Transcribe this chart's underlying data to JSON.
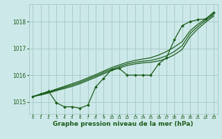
{
  "background_color": "#cce8e8",
  "grid_color": "#aacccc",
  "line_color": "#1a5c1a",
  "xlabel": "Graphe pression niveau de la mer (hPa)",
  "xlabel_fontsize": 6.5,
  "xticks": [
    0,
    1,
    2,
    3,
    4,
    5,
    6,
    7,
    8,
    9,
    10,
    11,
    12,
    13,
    14,
    15,
    16,
    17,
    18,
    19,
    20,
    21,
    22,
    23
  ],
  "yticks": [
    1015,
    1016,
    1017,
    1018
  ],
  "ylim": [
    1014.55,
    1018.65
  ],
  "xlim": [
    -0.5,
    23.5
  ],
  "series_smooth1": [
    1015.2,
    1015.28,
    1015.38,
    1015.48,
    1015.58,
    1015.68,
    1015.78,
    1015.9,
    1016.02,
    1016.15,
    1016.28,
    1016.38,
    1016.48,
    1016.55,
    1016.6,
    1016.65,
    1016.75,
    1016.88,
    1017.05,
    1017.25,
    1017.65,
    1017.9,
    1018.1,
    1018.3
  ],
  "series_smooth2": [
    1015.2,
    1015.27,
    1015.35,
    1015.45,
    1015.54,
    1015.63,
    1015.73,
    1015.85,
    1015.97,
    1016.1,
    1016.22,
    1016.32,
    1016.42,
    1016.48,
    1016.52,
    1016.55,
    1016.62,
    1016.72,
    1016.88,
    1017.1,
    1017.55,
    1017.82,
    1018.05,
    1018.25
  ],
  "series_smooth3": [
    1015.2,
    1015.26,
    1015.33,
    1015.42,
    1015.5,
    1015.58,
    1015.68,
    1015.8,
    1015.92,
    1016.05,
    1016.17,
    1016.27,
    1016.36,
    1016.42,
    1016.46,
    1016.48,
    1016.53,
    1016.62,
    1016.76,
    1016.96,
    1017.43,
    1017.73,
    1017.98,
    1018.2
  ],
  "series_main": [
    1015.2,
    1015.3,
    1015.4,
    1014.97,
    1014.82,
    1014.82,
    1014.77,
    1014.88,
    1015.56,
    1015.88,
    1016.2,
    1016.25,
    1016.0,
    1016.0,
    1016.0,
    1016.0,
    1016.42,
    1016.65,
    1017.32,
    1017.85,
    1018.0,
    1018.07,
    1018.1,
    1018.35
  ]
}
